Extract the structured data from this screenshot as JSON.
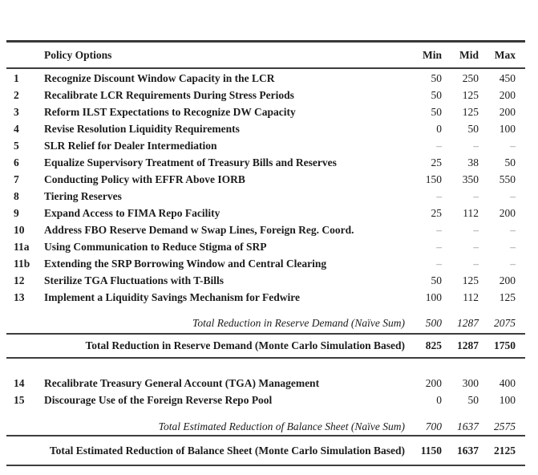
{
  "header": {
    "policy": "Policy Options",
    "min": "Min",
    "mid": "Mid",
    "max": "Max"
  },
  "section1": {
    "rows": [
      {
        "num": "1",
        "name": "Recognize Discount Window Capacity in the LCR",
        "min": "50",
        "mid": "250",
        "max": "450"
      },
      {
        "num": "2",
        "name": "Recalibrate LCR Requirements During Stress Periods",
        "min": "50",
        "mid": "125",
        "max": "200"
      },
      {
        "num": "3",
        "name": "Reform ILST Expectations to Recognize DW Capacity",
        "min": "50",
        "mid": "125",
        "max": "200"
      },
      {
        "num": "4",
        "name": "Revise Resolution Liquidity Requirements",
        "min": "0",
        "mid": "50",
        "max": "100"
      },
      {
        "num": "5",
        "name": "SLR Relief for Dealer Intermediation",
        "min": "–",
        "mid": "–",
        "max": "–"
      },
      {
        "num": "6",
        "name": "Equalize Supervisory Treatment of Treasury Bills and Reserves",
        "min": "25",
        "mid": "38",
        "max": "50"
      },
      {
        "num": "7",
        "name": "Conducting Policy with EFFR Above IORB",
        "min": "150",
        "mid": "350",
        "max": "550"
      },
      {
        "num": "8",
        "name": "Tiering Reserves",
        "min": "–",
        "mid": "–",
        "max": "–"
      },
      {
        "num": "9",
        "name": "Expand Access to FIMA Repo Facility",
        "min": "25",
        "mid": "112",
        "max": "200"
      },
      {
        "num": "10",
        "name": "Address FBO Reserve Demand w Swap Lines, Foreign Reg. Coord.",
        "min": "–",
        "mid": "–",
        "max": "–"
      },
      {
        "num": "11a",
        "name": "Using Communication to Reduce Stigma of SRP",
        "min": "–",
        "mid": "–",
        "max": "–"
      },
      {
        "num": "11b",
        "name": "Extending the SRP Borrowing Window and Central Clearing",
        "min": "–",
        "mid": "–",
        "max": "–"
      },
      {
        "num": "12",
        "name": "Sterilize TGA Fluctuations with T-Bills",
        "min": "50",
        "mid": "125",
        "max": "200"
      },
      {
        "num": "13",
        "name": "Implement a Liquidity Savings Mechanism for Fedwire",
        "min": "100",
        "mid": "112",
        "max": "125"
      }
    ],
    "naive": {
      "label": "Total Reduction in Reserve Demand (Naïve Sum)",
      "min": "500",
      "mid": "1287",
      "max": "2075"
    },
    "monte_carlo": {
      "label": "Total Reduction in Reserve Demand (Monte Carlo Simulation Based)",
      "min": "825",
      "mid": "1287",
      "max": "1750"
    }
  },
  "section2": {
    "rows": [
      {
        "num": "14",
        "name": "Recalibrate Treasury General Account (TGA) Management",
        "min": "200",
        "mid": "300",
        "max": "400"
      },
      {
        "num": "15",
        "name": "Discourage Use of the Foreign Reverse Repo Pool",
        "min": "0",
        "mid": "50",
        "max": "100"
      }
    ],
    "naive": {
      "label": "Total Estimated Reduction of Balance Sheet (Naïve Sum)",
      "min": "700",
      "mid": "1637",
      "max": "2575"
    },
    "monte_carlo": {
      "label": "Total Estimated Reduction of Balance Sheet (Monte Carlo Simulation Based)",
      "min": "1150",
      "mid": "1637",
      "max": "2125"
    }
  }
}
